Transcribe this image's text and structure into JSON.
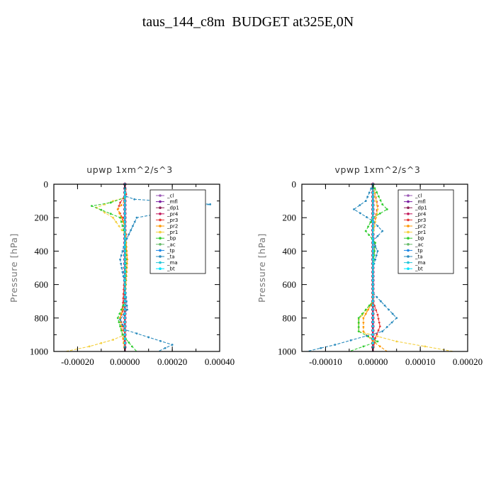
{
  "title": "taus_144_c8m  BUDGET at325E,0N",
  "chart_data": [
    {
      "type": "line",
      "title": "upwp   1xm^2/s^3",
      "ylabel": "Pressure [hPa]",
      "xlabel": "",
      "xlim": [
        -0.0003,
        0.0004
      ],
      "ylim": [
        1000,
        0
      ],
      "xticks": [
        "-0.00020",
        "0.00000",
        "0.00020",
        "0.00040"
      ],
      "xtick_values": [
        -0.0002,
        0,
        0.0002,
        0.0004
      ],
      "yticks": [
        "0",
        "200",
        "400",
        "600",
        "800",
        "1000"
      ],
      "ytick_values": [
        0,
        200,
        400,
        600,
        800,
        1000
      ],
      "legend_position": "top-right",
      "series": [
        {
          "name": "_cl",
          "color": "#9b59b6",
          "points": [
            [
              0,
              0
            ],
            [
              0,
              1000
            ]
          ]
        },
        {
          "name": "_mfl",
          "color": "#7b1fa2",
          "points": [
            [
              0,
              0
            ],
            [
              0,
              1000
            ]
          ]
        },
        {
          "name": "_dp1",
          "color": "#8e2157",
          "points": [
            [
              0,
              0
            ],
            [
              0,
              1000
            ]
          ]
        },
        {
          "name": "_pr4",
          "color": "#c2185b",
          "points": [
            [
              0,
              0
            ],
            [
              0,
              1000
            ]
          ]
        },
        {
          "name": "_pr3",
          "color": "#e53935",
          "points": [
            [
              0,
              0
            ],
            [
              5e-06,
              60
            ],
            [
              -2e-05,
              110
            ],
            [
              -3e-05,
              150
            ],
            [
              -1e-05,
              200
            ],
            [
              5e-06,
              300
            ],
            [
              0,
              500
            ],
            [
              -1e-05,
              760
            ],
            [
              -2e-05,
              800
            ],
            [
              -1e-05,
              850
            ],
            [
              0,
              900
            ],
            [
              0,
              1000
            ]
          ]
        },
        {
          "name": "_pr2",
          "color": "#ff9800",
          "points": [
            [
              0,
              0
            ],
            [
              0,
              100
            ],
            [
              -3e-05,
              150
            ],
            [
              0,
              250
            ],
            [
              1e-05,
              450
            ],
            [
              0,
              700
            ],
            [
              -2e-05,
              800
            ],
            [
              -1e-05,
              900
            ],
            [
              0,
              1000
            ]
          ]
        },
        {
          "name": "_pr1",
          "color": "#f4d03f",
          "points": [
            [
              0,
              0
            ],
            [
              0,
              80
            ],
            [
              -5e-05,
              100
            ],
            [
              -0.00012,
              140
            ],
            [
              -5e-05,
              200
            ],
            [
              0,
              300
            ],
            [
              0,
              900
            ],
            [
              -5e-05,
              930
            ],
            [
              -0.00015,
              970
            ],
            [
              -0.00025,
              1000
            ]
          ]
        },
        {
          "name": "_bp",
          "color": "#32cd32",
          "points": [
            [
              0,
              0
            ],
            [
              0,
              80
            ],
            [
              -6e-05,
              110
            ],
            [
              -0.00014,
              130
            ],
            [
              -2e-05,
              200
            ],
            [
              0,
              300
            ],
            [
              5e-06,
              450
            ],
            [
              0,
              700
            ],
            [
              -3e-05,
              800
            ],
            [
              -1e-05,
              900
            ],
            [
              3e-05,
              970
            ],
            [
              5e-05,
              1000
            ]
          ]
        },
        {
          "name": "_ac",
          "color": "#66bb6a",
          "points": [
            [
              0,
              0
            ],
            [
              0,
              1000
            ]
          ]
        },
        {
          "name": "_tp",
          "color": "#1e88e5",
          "points": [
            [
              0,
              0
            ],
            [
              0,
              1000
            ]
          ]
        },
        {
          "name": "_ta",
          "color": "#2b8cbe",
          "points": [
            [
              0,
              0
            ],
            [
              0,
              70
            ],
            [
              4e-05,
              90
            ],
            [
              0.00036,
              120
            ],
            [
              5e-05,
              200
            ],
            [
              0,
              350
            ],
            [
              -2e-05,
              450
            ],
            [
              0,
              600
            ],
            [
              1e-05,
              750
            ],
            [
              -2e-05,
              810
            ],
            [
              0,
              870
            ],
            [
              0.0002,
              960
            ],
            [
              0.00014,
              1000
            ]
          ]
        },
        {
          "name": "_ma",
          "color": "#26c6da",
          "points": [
            [
              0,
              0
            ],
            [
              0,
              1000
            ]
          ]
        },
        {
          "name": "_bt",
          "color": "#00e5ff",
          "points": [
            [
              0,
              0
            ],
            [
              0,
              1000
            ]
          ]
        }
      ]
    },
    {
      "type": "line",
      "title": "vpwp   1xm^2/s^3",
      "ylabel": "Pressure [hPa]",
      "xlabel": "",
      "xlim": [
        -0.00015,
        0.0002
      ],
      "ylim": [
        1000,
        0
      ],
      "xticks": [
        "-0.00010",
        "0.00000",
        "0.00010",
        "0.00020"
      ],
      "xtick_values": [
        -0.0001,
        0,
        0.0001,
        0.0002
      ],
      "yticks": [
        "0",
        "200",
        "400",
        "600",
        "800",
        "1000"
      ],
      "ytick_values": [
        0,
        200,
        400,
        600,
        800,
        1000
      ],
      "legend_position": "top-right",
      "series": [
        {
          "name": "_cl",
          "color": "#9b59b6",
          "points": [
            [
              0,
              0
            ],
            [
              0,
              1000
            ]
          ]
        },
        {
          "name": "_mfl",
          "color": "#7b1fa2",
          "points": [
            [
              0,
              0
            ],
            [
              0,
              1000
            ]
          ]
        },
        {
          "name": "_dp1",
          "color": "#8e2157",
          "points": [
            [
              0,
              0
            ],
            [
              0,
              1000
            ]
          ]
        },
        {
          "name": "_pr4",
          "color": "#c2185b",
          "points": [
            [
              0,
              0
            ],
            [
              0,
              1000
            ]
          ]
        },
        {
          "name": "_pr3",
          "color": "#e53935",
          "points": [
            [
              0,
              0
            ],
            [
              1e-05,
              130
            ],
            [
              0,
              300
            ],
            [
              0,
              700
            ],
            [
              1e-05,
              780
            ],
            [
              1.5e-05,
              850
            ],
            [
              5e-06,
              920
            ],
            [
              0,
              1000
            ]
          ]
        },
        {
          "name": "_pr2",
          "color": "#ff9800",
          "points": [
            [
              0,
              0
            ],
            [
              0,
              700
            ],
            [
              -2e-05,
              800
            ],
            [
              -2e-05,
              880
            ],
            [
              0,
              940
            ],
            [
              3e-05,
              1000
            ]
          ]
        },
        {
          "name": "_pr1",
          "color": "#f4d03f",
          "points": [
            [
              0,
              0
            ],
            [
              1e-05,
              150
            ],
            [
              0,
              300
            ],
            [
              0,
              700
            ],
            [
              -3e-05,
              810
            ],
            [
              -3e-05,
              880
            ],
            [
              5e-05,
              940
            ],
            [
              0.00017,
              1000
            ]
          ]
        },
        {
          "name": "_bp",
          "color": "#32cd32",
          "points": [
            [
              0,
              0
            ],
            [
              2e-05,
              120
            ],
            [
              3e-05,
              150
            ],
            [
              0,
              200
            ],
            [
              -1.5e-05,
              280
            ],
            [
              5e-06,
              350
            ],
            [
              0,
              500
            ],
            [
              0,
              700
            ],
            [
              -3e-05,
              800
            ],
            [
              -3e-05,
              880
            ],
            [
              1e-05,
              940
            ],
            [
              -5e-05,
              1000
            ]
          ]
        },
        {
          "name": "_ac",
          "color": "#66bb6a",
          "points": [
            [
              0,
              0
            ],
            [
              0,
              1000
            ]
          ]
        },
        {
          "name": "_tp",
          "color": "#1e88e5",
          "points": [
            [
              0,
              0
            ],
            [
              0,
              1000
            ]
          ]
        },
        {
          "name": "_ta",
          "color": "#2b8cbe",
          "points": [
            [
              0,
              0
            ],
            [
              -1.5e-05,
              100
            ],
            [
              -4e-05,
              150
            ],
            [
              0,
              220
            ],
            [
              2e-05,
              280
            ],
            [
              0,
              340
            ],
            [
              1e-05,
              400
            ],
            [
              0,
              500
            ],
            [
              0,
              650
            ],
            [
              5e-05,
              800
            ],
            [
              2e-05,
              880
            ],
            [
              -8e-05,
              960
            ],
            [
              -0.00014,
              1000
            ]
          ]
        },
        {
          "name": "_ma",
          "color": "#26c6da",
          "points": [
            [
              0,
              0
            ],
            [
              0,
              1000
            ]
          ]
        },
        {
          "name": "_bt",
          "color": "#00e5ff",
          "points": [
            [
              0,
              0
            ],
            [
              0,
              1000
            ]
          ]
        }
      ]
    }
  ]
}
